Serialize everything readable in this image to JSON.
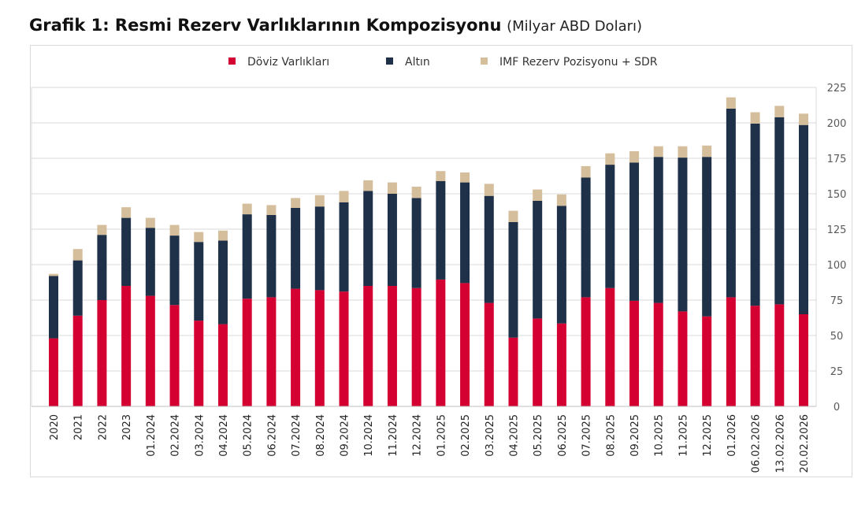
{
  "title": "Grafik 1: Resmi Rezerv Varlıklarının Kompozisyonu",
  "subtitle": "(Milyar ABD Doları)",
  "chart_data": {
    "type": "bar",
    "stacked": true,
    "categories": [
      "2020",
      "2021",
      "2022",
      "2023",
      "01.2024",
      "02.2024",
      "03.2024",
      "04.2024",
      "05.2024",
      "06.2024",
      "07.2024",
      "08.2024",
      "09.2024",
      "10.2024",
      "11.2024",
      "12.2024",
      "01.2025",
      "02.2025",
      "03.2025",
      "04.2025",
      "05.2025",
      "06.2025",
      "07.2025",
      "08.2025",
      "09.2025",
      "10.2025",
      "11.2025",
      "12.2025",
      "01.2026",
      "06.02.2026",
      "13.02.2026",
      "20.02.2026"
    ],
    "series": [
      {
        "name": "Döviz Varlıkları",
        "color": "#d50032",
        "values": [
          48,
          64,
          75,
          85,
          78,
          71.5,
          60.5,
          58,
          76,
          77,
          83,
          82,
          81,
          85,
          85,
          83.5,
          89.5,
          87,
          73,
          48.5,
          62,
          58.5,
          77,
          83.5,
          74.5,
          73,
          67,
          63.5,
          77,
          71,
          72,
          65
        ]
      },
      {
        "name": "Altın",
        "color": "#1e3148",
        "values": [
          44,
          39,
          46,
          48,
          48,
          49,
          55.5,
          59,
          59.5,
          58,
          57,
          59,
          63,
          67,
          65,
          63.5,
          69.5,
          71,
          75.5,
          81.5,
          83,
          83,
          84.5,
          87,
          97.5,
          103,
          108.5,
          112.5,
          133,
          128.5,
          132,
          133.5
        ]
      },
      {
        "name": "IMF Rezerv Pozisyonu + SDR",
        "color": "#d5be9c",
        "values": [
          1.5,
          8,
          7,
          7.5,
          7,
          7.5,
          7,
          7,
          7.5,
          7,
          7,
          8,
          8,
          7.5,
          8,
          8,
          7,
          7,
          8.5,
          8,
          8,
          8,
          8,
          8,
          8,
          7.5,
          8,
          8,
          8,
          8,
          8,
          8
        ]
      }
    ],
    "yaxis": {
      "side": "right",
      "min": 0,
      "max": 225,
      "ticks": [
        0,
        25,
        50,
        75,
        100,
        125,
        150,
        175,
        200,
        225
      ]
    },
    "grid": true,
    "legend": "top-center",
    "xlabel": "",
    "ylabel": ""
  }
}
